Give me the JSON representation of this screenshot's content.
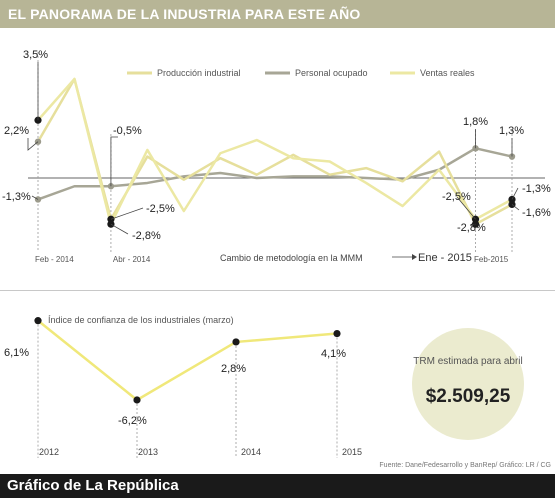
{
  "header": {
    "title": "EL PANORAMA DE LA INDUSTRIA PARA ESTE AÑO"
  },
  "footer": {
    "brand": "Gráfico de La República",
    "source": "Fuente: Dane/Fedesarrollo y BanRep/ Gráfico: LR / CG"
  },
  "colors": {
    "header_bg": "#b7b596",
    "produccion": "#e6df9c",
    "personal": "#a7a696",
    "ventas": "#ece8a3",
    "confianza": "#f0e87a",
    "marker": "#1a1a1a"
  },
  "trm": {
    "label": "TRM estimada para abril",
    "value": "$2.509,25"
  },
  "chart_data": [
    {
      "type": "line",
      "title": "",
      "legend_position": "top",
      "x_labels": [
        "Feb - 2014",
        "Abr - 2014",
        "Ene - 2015",
        "Feb-2015"
      ],
      "annotation": "Cambio de metodología en la MMM",
      "annotation_target": "Ene - 2015",
      "series": [
        {
          "name": "Producción industrial",
          "values": [
            2.2,
            6.0,
            -2.5,
            1.3,
            -0.1,
            1.2,
            0.2,
            1.4,
            0.2,
            0.6,
            -0.2,
            1.6,
            -2.8,
            -1.6
          ]
        },
        {
          "name": "Personal ocupado",
          "values": [
            -1.3,
            -0.5,
            -0.5,
            -0.3,
            0.1,
            0.3,
            0.0,
            0.1,
            0.1,
            0.0,
            -0.1,
            0.5,
            1.8,
            1.3
          ]
        },
        {
          "name": "Ventas reales",
          "values": [
            3.5,
            6.0,
            -2.8,
            1.7,
            -2.0,
            1.5,
            2.3,
            1.2,
            1.0,
            -0.3,
            -1.7,
            0.5,
            -2.5,
            -1.3
          ]
        }
      ],
      "point_labels": [
        "3,5%",
        "2,2%",
        "-1,3%",
        "-0,5%",
        "-2,5%",
        "-2,8%",
        "1,8%",
        "1,3%",
        "-2,5%",
        "-2,8%",
        "-1,3%",
        "-1,6%"
      ]
    },
    {
      "type": "line",
      "title": "Índice de confianza de los industriales (marzo)",
      "categories": [
        "2012",
        "2013",
        "2014",
        "2015"
      ],
      "series": [
        {
          "values": [
            6.1,
            -6.2,
            2.8,
            4.1
          ]
        }
      ],
      "point_labels": [
        "6,1%",
        "-6,2%",
        "2,8%",
        "4,1%"
      ]
    }
  ]
}
